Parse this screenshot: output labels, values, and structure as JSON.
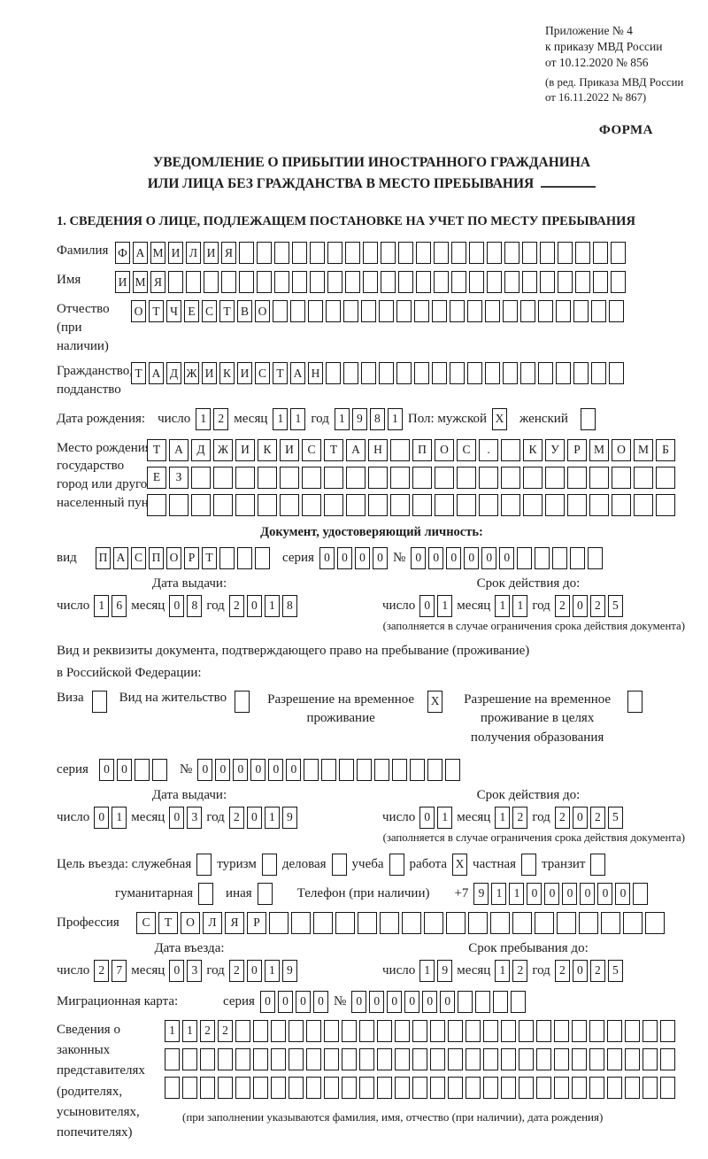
{
  "doc": {
    "annex": [
      "Приложение № 4",
      "к приказу МВД России",
      "от 10.12.2020 № 856"
    ],
    "amendment": [
      "(в ред. Приказа МВД России",
      "от 16.11.2022 № 867)"
    ],
    "forma": "ФОРМА",
    "title": [
      "УВЕДОМЛЕНИЕ О ПРИБЫТИИ ИНОСТРАННОГО ГРАЖДАНИНА",
      "ИЛИ ЛИЦА БЕЗ ГРАЖДАНСТВА В МЕСТО ПРЕБЫВАНИЯ"
    ],
    "section1": "1. СВЕДЕНИЯ О ЛИЦЕ, ПОДЛЕЖАЩЕМ ПОСТАНОВКЕ НА УЧЕТ ПО МЕСТУ ПРЕБЫВАНИЯ"
  },
  "labels": {
    "surname": "Фамилия",
    "name": "Имя",
    "patronymic": "Отчество",
    "patronymic2": "(при наличии)",
    "citizenship": "Гражданство,",
    "citizenship2": "подданство",
    "birth_date": "Дата рождения:",
    "day": "число",
    "month": "месяц",
    "year": "год",
    "sex_male": "Пол: мужской",
    "sex_female": "женский",
    "birth_place": "Место рождения:",
    "state": "государство",
    "city1": "город или другой",
    "city2": "населенный пункт",
    "id_doc_heading": "Документ, удостоверяющий личность:",
    "kind": "вид",
    "series": "серия",
    "number": "№",
    "issue_date": "Дата выдачи:",
    "valid_until": "Срок действия до:",
    "valid_note": "(заполняется в случае ограничения срока действия документа)",
    "right_doc1": "Вид и реквизиты документа, подтверждающего право на пребывание (проживание)",
    "right_doc2": "в Российской Федерации:",
    "visa": "Виза",
    "residence_permit": "Вид на жительство",
    "temp_permit": "Разрешение на временное проживание",
    "temp_permit_edu": "Разрешение на временное проживание в целях получения образования",
    "purpose_official": "Цель въезда: служебная",
    "tourism": "туризм",
    "business": "деловая",
    "study": "учеба",
    "work": "работа",
    "private": "частная",
    "transit": "транзит",
    "humanitarian": "гуманитарная",
    "other": "иная",
    "phone": "Телефон (при наличии)",
    "phone_prefix": "+7",
    "profession": "Профессия",
    "entry_date": "Дата въезда:",
    "stay_until": "Срок пребывания до:",
    "migration_card": "Миграционная карта:",
    "legal1": "Сведения о",
    "legal2": "законных",
    "legal3": "представителях",
    "legal4": "(родителях,",
    "legal5": "усыновителях,",
    "legal6": "попечителях)",
    "legal_note": "(при заполнении указываются фамилия, имя, отчество (при наличии), дата рождения)"
  },
  "boxes": {
    "surname": {
      "chars": [
        "Ф",
        "А",
        "М",
        "И",
        "Л",
        "И",
        "Я"
      ],
      "total": 29
    },
    "name": {
      "chars": [
        "И",
        "М",
        "Я"
      ],
      "total": 29
    },
    "patronymic": {
      "chars": [
        "О",
        "Т",
        "Ч",
        "Е",
        "С",
        "Т",
        "В",
        "О"
      ],
      "total": 28
    },
    "citizenship": {
      "chars": [
        "Т",
        "А",
        "Д",
        "Ж",
        "И",
        "К",
        "И",
        "С",
        "Т",
        "А",
        "Н"
      ],
      "total": 28
    },
    "birth_day": {
      "chars": [
        "1",
        "2"
      ],
      "total": 2
    },
    "birth_month": {
      "chars": [
        "1",
        "1"
      ],
      "total": 2
    },
    "birth_year": {
      "chars": [
        "1",
        "9",
        "8",
        "1"
      ],
      "total": 4
    },
    "sex_male_box": {
      "chars": [
        "X"
      ],
      "total": 1
    },
    "sex_female_box": {
      "chars": [],
      "total": 1
    },
    "birth_place_1": {
      "chars": [
        "Т",
        "А",
        "Д",
        "Ж",
        "И",
        "К",
        "И",
        "С",
        "Т",
        "А",
        "Н",
        "",
        "П",
        "О",
        "С",
        ".",
        "",
        "К",
        "У",
        "Р",
        "М",
        "О",
        "М",
        "Б"
      ],
      "total": 24
    },
    "birth_place_2": {
      "chars": [
        "Е",
        "З"
      ],
      "total": 24
    },
    "birth_place_3": {
      "chars": [],
      "total": 24
    },
    "id_kind": {
      "chars": [
        "П",
        "А",
        "С",
        "П",
        "О",
        "Р",
        "Т"
      ],
      "total": 10
    },
    "id_series": {
      "chars": [
        "0",
        "0",
        "0",
        "0"
      ],
      "total": 4
    },
    "id_number": {
      "chars": [
        "0",
        "0",
        "0",
        "0",
        "0",
        "0"
      ],
      "total": 11
    },
    "id_issue_day": {
      "chars": [
        "1",
        "6"
      ],
      "total": 2
    },
    "id_issue_month": {
      "chars": [
        "0",
        "8"
      ],
      "total": 2
    },
    "id_issue_year": {
      "chars": [
        "2",
        "0",
        "1",
        "8"
      ],
      "total": 4
    },
    "id_valid_day": {
      "chars": [
        "0",
        "1"
      ],
      "total": 2
    },
    "id_valid_month": {
      "chars": [
        "1",
        "1"
      ],
      "total": 2
    },
    "id_valid_year": {
      "chars": [
        "2",
        "0",
        "2",
        "5"
      ],
      "total": 4
    },
    "visa_box": {
      "chars": [],
      "total": 1
    },
    "residence_permit_box": {
      "chars": [],
      "total": 1
    },
    "temp_permit_box": {
      "chars": [
        "X"
      ],
      "total": 1
    },
    "temp_permit_edu_box": {
      "chars": [],
      "total": 1
    },
    "permit_series": {
      "chars": [
        "0",
        "0"
      ],
      "total": 4
    },
    "permit_number": {
      "chars": [
        "0",
        "0",
        "0",
        "0",
        "0",
        "0"
      ],
      "total": 15
    },
    "permit_issue_day": {
      "chars": [
        "0",
        "1"
      ],
      "total": 2
    },
    "permit_issue_month": {
      "chars": [
        "0",
        "3"
      ],
      "total": 2
    },
    "permit_issue_year": {
      "chars": [
        "2",
        "0",
        "1",
        "9"
      ],
      "total": 4
    },
    "permit_valid_day": {
      "chars": [
        "0",
        "1"
      ],
      "total": 2
    },
    "permit_valid_month": {
      "chars": [
        "1",
        "2"
      ],
      "total": 2
    },
    "permit_valid_year": {
      "chars": [
        "2",
        "0",
        "2",
        "5"
      ],
      "total": 4
    },
    "purpose_official_box": {
      "chars": [],
      "total": 1
    },
    "purpose_tourism_box": {
      "chars": [],
      "total": 1
    },
    "purpose_business_box": {
      "chars": [],
      "total": 1
    },
    "purpose_study_box": {
      "chars": [],
      "total": 1
    },
    "purpose_work_box": {
      "chars": [
        "X"
      ],
      "total": 1
    },
    "purpose_private_box": {
      "chars": [],
      "total": 1
    },
    "purpose_transit_box": {
      "chars": [],
      "total": 1
    },
    "purpose_humanitarian_box": {
      "chars": [],
      "total": 1
    },
    "purpose_other_box": {
      "chars": [],
      "total": 1
    },
    "phone_number": {
      "chars": [
        "9",
        "1",
        "1",
        "0",
        "0",
        "0",
        "0",
        "0",
        "0"
      ],
      "total": 10
    },
    "profession": {
      "chars": [
        "С",
        "Т",
        "О",
        "Л",
        "Я",
        "Р"
      ],
      "total": 24
    },
    "entry_day": {
      "chars": [
        "2",
        "7"
      ],
      "total": 2
    },
    "entry_month": {
      "chars": [
        "0",
        "3"
      ],
      "total": 2
    },
    "entry_year": {
      "chars": [
        "2",
        "0",
        "1",
        "9"
      ],
      "total": 4
    },
    "stay_day": {
      "chars": [
        "1",
        "9"
      ],
      "total": 2
    },
    "stay_month": {
      "chars": [
        "1",
        "2"
      ],
      "total": 2
    },
    "stay_year": {
      "chars": [
        "2",
        "0",
        "2",
        "5"
      ],
      "total": 4
    },
    "mig_series": {
      "chars": [
        "0",
        "0",
        "0",
        "0"
      ],
      "total": 4
    },
    "mig_number": {
      "chars": [
        "0",
        "0",
        "0",
        "0",
        "0",
        "0"
      ],
      "total": 10
    },
    "legal_row_1": {
      "chars": [
        "1",
        "1",
        "2",
        "2"
      ],
      "total": 29
    },
    "legal_row_2": {
      "chars": [],
      "total": 29
    },
    "legal_row_3": {
      "chars": [],
      "total": 29
    }
  }
}
